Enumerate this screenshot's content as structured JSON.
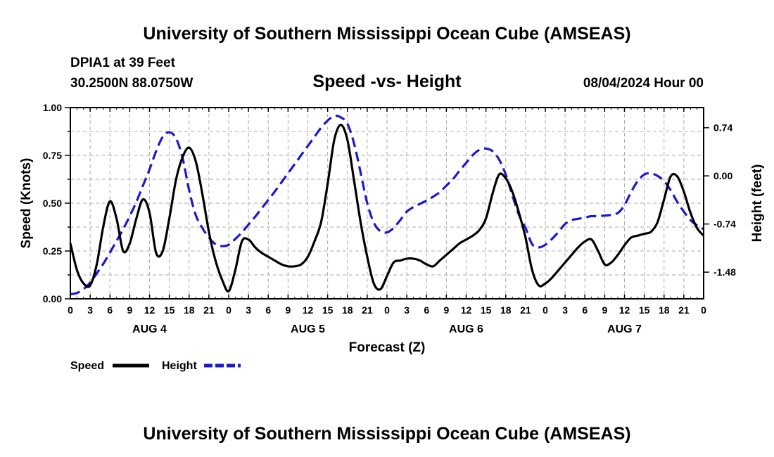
{
  "header": {
    "title": "University of Southern Mississippi Ocean Cube (AMSEAS)",
    "station": "DPIA1 at 39 Feet",
    "coords": "30.2500N  88.0750W",
    "chart_title": "Speed -vs- Height",
    "datetime": "08/04/2024 Hour 00"
  },
  "footer": {
    "title": "University of Southern Mississippi Ocean Cube (AMSEAS)"
  },
  "colors": {
    "speed": "#000000",
    "height": "#1a1acc",
    "grid": "#aaaaaa"
  },
  "chart_data": {
    "type": "line",
    "title": "Speed -vs- Height",
    "xlabel": "Forecast (Z)",
    "ylabel": "Speed (Knots)",
    "y2label": "Height (feet)",
    "xlim": [
      0,
      96
    ],
    "ylim": [
      0,
      1.0
    ],
    "y2lim": [
      -1.89,
      1.05
    ],
    "x_tick_step_hours": 3,
    "x_tick_labels": [
      "0",
      "3",
      "6",
      "9",
      "12",
      "15",
      "18",
      "21",
      "0",
      "3",
      "6",
      "9",
      "12",
      "15",
      "18",
      "21",
      "0",
      "3",
      "6",
      "9",
      "12",
      "15",
      "18",
      "21",
      "0",
      "3",
      "6",
      "9",
      "12",
      "15",
      "18",
      "21",
      "0"
    ],
    "y_ticks": [
      "0.00",
      "0.25",
      "0.50",
      "0.75",
      "1.00"
    ],
    "y2_ticks": [
      "0.74",
      "0.00",
      "-0.74",
      "-1.48"
    ],
    "y2_tick_values": [
      0.74,
      0.0,
      -0.74,
      -1.48
    ],
    "days": [
      {
        "label": "AUG 4",
        "hour": 12
      },
      {
        "label": "AUG 5",
        "hour": 36
      },
      {
        "label": "AUG 6",
        "hour": 60
      },
      {
        "label": "AUG 7",
        "hour": 84
      }
    ],
    "legend": [
      {
        "label": "Speed",
        "series": "speed"
      },
      {
        "label": "Height",
        "series": "height"
      }
    ],
    "series": [
      {
        "name": "Speed",
        "axis": "left",
        "style": "solid",
        "x": [
          0,
          1,
          2,
          3,
          4,
          5,
          6,
          7,
          8,
          9,
          10,
          11,
          12,
          13,
          14,
          15,
          16,
          17,
          18,
          19,
          20,
          21,
          22,
          23,
          24,
          25,
          26,
          27,
          28,
          29,
          30,
          31,
          32,
          33,
          34,
          35,
          36,
          37,
          38,
          39,
          40,
          41,
          42,
          43,
          44,
          45,
          46,
          47,
          48,
          49,
          50,
          51,
          52,
          53,
          54,
          55,
          56,
          57,
          58,
          59,
          60,
          61,
          62,
          63,
          64,
          65,
          66,
          67,
          68,
          69,
          70,
          71,
          72,
          73,
          74,
          75,
          76,
          77,
          78,
          79,
          80,
          81,
          82,
          83,
          84,
          85,
          86,
          87,
          88,
          89,
          90,
          91,
          92,
          93,
          94,
          95,
          96
        ],
        "values": [
          0.29,
          0.15,
          0.08,
          0.07,
          0.18,
          0.38,
          0.51,
          0.42,
          0.25,
          0.29,
          0.42,
          0.52,
          0.45,
          0.24,
          0.25,
          0.42,
          0.62,
          0.74,
          0.79,
          0.72,
          0.55,
          0.35,
          0.2,
          0.1,
          0.04,
          0.15,
          0.3,
          0.31,
          0.27,
          0.24,
          0.22,
          0.2,
          0.18,
          0.17,
          0.17,
          0.18,
          0.22,
          0.3,
          0.4,
          0.6,
          0.83,
          0.91,
          0.83,
          0.62,
          0.4,
          0.22,
          0.08,
          0.05,
          0.12,
          0.19,
          0.2,
          0.21,
          0.21,
          0.2,
          0.18,
          0.17,
          0.2,
          0.23,
          0.26,
          0.29,
          0.31,
          0.33,
          0.36,
          0.42,
          0.55,
          0.65,
          0.63,
          0.56,
          0.45,
          0.32,
          0.15,
          0.07,
          0.08,
          0.11,
          0.15,
          0.19,
          0.23,
          0.27,
          0.3,
          0.31,
          0.25,
          0.18,
          0.19,
          0.23,
          0.28,
          0.32,
          0.33,
          0.34,
          0.35,
          0.4,
          0.52,
          0.64,
          0.64,
          0.56,
          0.45,
          0.37,
          0.33
        ]
      },
      {
        "name": "Height",
        "axis": "right",
        "style": "dashed",
        "x": [
          0,
          1,
          2,
          3,
          4,
          5,
          6,
          7,
          8,
          9,
          10,
          11,
          12,
          13,
          14,
          15,
          16,
          17,
          18,
          19,
          20,
          21,
          22,
          23,
          24,
          25,
          26,
          27,
          28,
          29,
          30,
          31,
          32,
          33,
          34,
          35,
          36,
          37,
          38,
          39,
          40,
          41,
          42,
          43,
          44,
          45,
          46,
          47,
          48,
          49,
          50,
          51,
          52,
          53,
          54,
          55,
          56,
          57,
          58,
          59,
          60,
          61,
          62,
          63,
          64,
          65,
          66,
          67,
          68,
          69,
          70,
          71,
          72,
          73,
          74,
          75,
          76,
          77,
          78,
          79,
          80,
          81,
          82,
          83,
          84,
          85,
          86,
          87,
          88,
          89,
          90,
          91,
          92,
          93,
          94,
          95,
          96
        ],
        "values": [
          -1.82,
          -1.8,
          -1.74,
          -1.64,
          -1.5,
          -1.35,
          -1.18,
          -1.0,
          -0.82,
          -0.62,
          -0.4,
          -0.15,
          0.1,
          0.38,
          0.6,
          0.67,
          0.58,
          0.28,
          -0.22,
          -0.6,
          -0.8,
          -0.95,
          -1.05,
          -1.08,
          -1.06,
          -0.97,
          -0.87,
          -0.75,
          -0.63,
          -0.5,
          -0.37,
          -0.24,
          -0.1,
          0.04,
          0.18,
          0.32,
          0.46,
          0.6,
          0.74,
          0.85,
          0.92,
          0.9,
          0.8,
          0.5,
          0.05,
          -0.42,
          -0.72,
          -0.85,
          -0.87,
          -0.8,
          -0.68,
          -0.55,
          -0.48,
          -0.43,
          -0.38,
          -0.32,
          -0.25,
          -0.15,
          -0.05,
          0.08,
          0.2,
          0.32,
          0.4,
          0.42,
          0.38,
          0.25,
          0.02,
          -0.3,
          -0.6,
          -0.8,
          -1.05,
          -1.1,
          -1.06,
          -0.97,
          -0.86,
          -0.74,
          -0.68,
          -0.66,
          -0.64,
          -0.62,
          -0.62,
          -0.61,
          -0.6,
          -0.57,
          -0.45,
          -0.25,
          -0.08,
          0.02,
          0.04,
          0.0,
          -0.08,
          -0.22,
          -0.4,
          -0.55,
          -0.68,
          -0.76,
          -0.82
        ]
      }
    ]
  }
}
